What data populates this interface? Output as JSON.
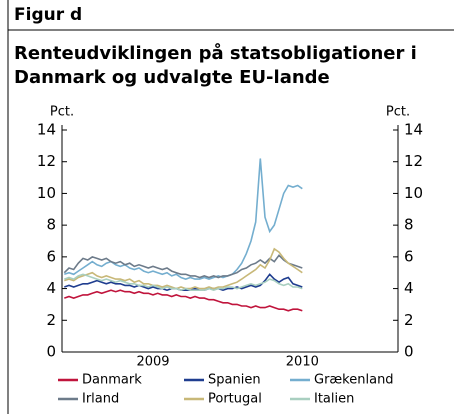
{
  "header": "Figur d",
  "chart_data": {
    "type": "line",
    "title_lines": [
      "Renteudviklingen på statsobligationer i",
      "Danmark og udvalgte EU-lande"
    ],
    "y_label": "Pct.",
    "y2_label": "Pct.",
    "categories": [
      null,
      null,
      null,
      null,
      null,
      null,
      null,
      null,
      null,
      null,
      null,
      null,
      null,
      null,
      null,
      null,
      null,
      null,
      null,
      "2009",
      null,
      null,
      null,
      null,
      null,
      null,
      null,
      null,
      null,
      null,
      null,
      null,
      null,
      null,
      null,
      null,
      null,
      null,
      null,
      null,
      null,
      null,
      null,
      null,
      null,
      null,
      null,
      null,
      null,
      null,
      null,
      "2010",
      null,
      null,
      null,
      null,
      null,
      null,
      null,
      null,
      null,
      null,
      null,
      null,
      null,
      null,
      null,
      null,
      null,
      null,
      null,
      null
    ],
    "ylim": [
      0,
      14
    ],
    "yticks": [
      0,
      2,
      4,
      6,
      8,
      10,
      12,
      14
    ],
    "y2lim": [
      0,
      14
    ],
    "y2ticks": [
      0,
      2,
      4,
      6,
      8,
      10,
      12,
      14
    ],
    "series": [
      {
        "name": "Danmark",
        "color": "#c0143c",
        "values": [
          3.4,
          3.5,
          3.4,
          3.5,
          3.6,
          3.6,
          3.7,
          3.8,
          3.7,
          3.8,
          3.9,
          3.8,
          3.9,
          3.8,
          3.8,
          3.7,
          3.8,
          3.7,
          3.7,
          3.6,
          3.7,
          3.6,
          3.6,
          3.5,
          3.6,
          3.5,
          3.5,
          3.4,
          3.5,
          3.4,
          3.4,
          3.3,
          3.3,
          3.2,
          3.1,
          3.1,
          3.0,
          3.0,
          2.9,
          2.9,
          2.8,
          2.9,
          2.8,
          2.8,
          2.9,
          2.8,
          2.7,
          2.7,
          2.6,
          2.7,
          2.7,
          2.6,
          null,
          null,
          null,
          null,
          null,
          null,
          null,
          null,
          null,
          null,
          null,
          null,
          null,
          null,
          null,
          null,
          null,
          null,
          null,
          null
        ]
      },
      {
        "name": "Spanien",
        "color": "#1f3d8f",
        "values": [
          4.1,
          4.2,
          4.1,
          4.2,
          4.3,
          4.3,
          4.4,
          4.5,
          4.4,
          4.3,
          4.4,
          4.3,
          4.3,
          4.2,
          4.2,
          4.1,
          4.2,
          4.1,
          4.0,
          4.1,
          4.0,
          4.0,
          3.9,
          4.0,
          4.0,
          3.9,
          3.9,
          3.9,
          4.0,
          3.9,
          3.9,
          4.0,
          4.0,
          4.0,
          3.9,
          4.0,
          4.0,
          4.1,
          4.0,
          4.1,
          4.2,
          4.1,
          4.2,
          4.5,
          4.9,
          4.6,
          4.4,
          4.6,
          4.7,
          4.3,
          4.2,
          4.1,
          null,
          null,
          null,
          null,
          null,
          null,
          null,
          null,
          null,
          null,
          null,
          null,
          null,
          null,
          null,
          null,
          null,
          null,
          null,
          null
        ]
      },
      {
        "name": "Grækenland",
        "color": "#74aecf",
        "values": [
          4.9,
          5.0,
          4.9,
          5.1,
          5.3,
          5.5,
          5.7,
          5.5,
          5.4,
          5.6,
          5.7,
          5.5,
          5.4,
          5.5,
          5.3,
          5.2,
          5.3,
          5.1,
          5.0,
          5.1,
          5.0,
          4.9,
          5.0,
          4.8,
          4.9,
          4.7,
          4.6,
          4.7,
          4.6,
          4.6,
          4.7,
          4.6,
          4.7,
          4.8,
          4.7,
          4.8,
          4.9,
          5.2,
          5.6,
          6.2,
          7.0,
          8.2,
          12.2,
          8.5,
          7.6,
          8.0,
          9.0,
          10.0,
          10.5,
          10.4,
          10.5,
          10.3,
          null,
          null,
          null,
          null,
          null,
          null,
          null,
          null,
          null,
          null,
          null,
          null,
          null,
          null,
          null,
          null,
          null,
          null,
          null,
          null
        ]
      },
      {
        "name": "Irland",
        "color": "#6d7b8a",
        "values": [
          5.0,
          5.3,
          5.2,
          5.6,
          5.9,
          5.8,
          6.0,
          5.9,
          5.8,
          5.9,
          5.7,
          5.6,
          5.7,
          5.5,
          5.6,
          5.4,
          5.5,
          5.4,
          5.3,
          5.4,
          5.3,
          5.2,
          5.3,
          5.1,
          5.0,
          4.9,
          4.9,
          4.8,
          4.8,
          4.7,
          4.8,
          4.7,
          4.8,
          4.7,
          4.8,
          4.8,
          4.9,
          5.0,
          5.2,
          5.3,
          5.5,
          5.6,
          5.8,
          5.6,
          5.9,
          5.7,
          6.1,
          5.8,
          5.6,
          5.5,
          5.4,
          5.3,
          null,
          null,
          null,
          null,
          null,
          null,
          null,
          null,
          null,
          null,
          null,
          null,
          null,
          null,
          null,
          null,
          null,
          null,
          null,
          null
        ]
      },
      {
        "name": "Portugal",
        "color": "#c8b878",
        "values": [
          4.5,
          4.6,
          4.5,
          4.7,
          4.8,
          4.9,
          5.0,
          4.8,
          4.7,
          4.8,
          4.7,
          4.6,
          4.6,
          4.5,
          4.6,
          4.4,
          4.5,
          4.3,
          4.3,
          4.2,
          4.2,
          4.1,
          4.2,
          4.1,
          4.0,
          4.1,
          4.0,
          4.0,
          4.1,
          4.0,
          4.0,
          4.1,
          4.0,
          4.1,
          4.1,
          4.2,
          4.3,
          4.4,
          4.6,
          4.8,
          5.0,
          5.2,
          5.5,
          5.3,
          5.8,
          6.5,
          6.3,
          5.9,
          5.6,
          5.4,
          5.2,
          5.0,
          null,
          null,
          null,
          null,
          null,
          null,
          null,
          null,
          null,
          null,
          null,
          null,
          null,
          null,
          null,
          null,
          null,
          null,
          null,
          null
        ]
      },
      {
        "name": "Italien",
        "color": "#a9cfc0",
        "values": [
          4.6,
          4.7,
          4.6,
          4.8,
          4.9,
          4.8,
          4.7,
          4.6,
          4.5,
          4.6,
          4.5,
          4.4,
          4.5,
          4.4,
          4.3,
          4.3,
          4.2,
          4.2,
          4.1,
          4.2,
          4.1,
          4.0,
          4.1,
          4.0,
          4.0,
          3.9,
          4.0,
          3.9,
          3.9,
          3.9,
          3.9,
          4.0,
          3.9,
          4.0,
          4.0,
          4.1,
          4.1,
          4.0,
          4.1,
          4.2,
          4.3,
          4.2,
          4.3,
          4.4,
          4.6,
          4.5,
          4.3,
          4.2,
          4.3,
          4.1,
          4.1,
          4.0,
          null,
          null,
          null,
          null,
          null,
          null,
          null,
          null,
          null,
          null,
          null,
          null,
          null,
          null,
          null,
          null,
          null,
          null,
          null,
          null
        ]
      }
    ]
  }
}
